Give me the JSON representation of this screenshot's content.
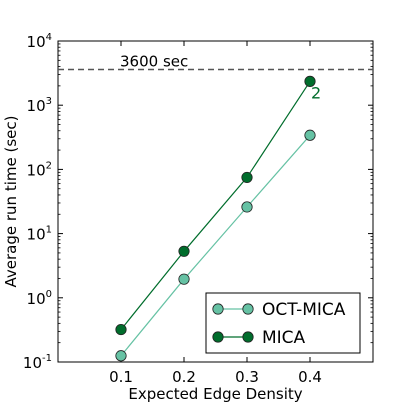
{
  "chart_data": {
    "type": "line",
    "xlabel": "Expected Edge Density",
    "ylabel": "Average run time (sec)",
    "yscale": "log",
    "xlim": [
      0.0,
      0.5
    ],
    "ylim": [
      0.1,
      10000
    ],
    "x_ticks": [
      {
        "value": 0.1,
        "label": "0.1"
      },
      {
        "value": 0.2,
        "label": "0.2"
      },
      {
        "value": 0.3,
        "label": "0.3"
      },
      {
        "value": 0.4,
        "label": "0.4"
      }
    ],
    "y_ticks": [
      {
        "value": 0.1,
        "base": "10",
        "exp": "-1"
      },
      {
        "value": 1,
        "base": "10",
        "exp": "0"
      },
      {
        "value": 10,
        "base": "10",
        "exp": "1"
      },
      {
        "value": 100,
        "base": "10",
        "exp": "2"
      },
      {
        "value": 1000,
        "base": "10",
        "exp": "3"
      },
      {
        "value": 10000,
        "base": "10",
        "exp": "4"
      }
    ],
    "x": [
      0.1,
      0.2,
      0.3,
      0.4
    ],
    "series": [
      {
        "name": "OCT-MICA",
        "values": [
          0.125,
          1.95,
          26,
          340
        ],
        "color": "#66c2a4"
      },
      {
        "name": "MICA",
        "values": [
          0.32,
          5.3,
          75,
          2350
        ],
        "color": "#006d2c"
      }
    ],
    "reference_line": {
      "value": 3600,
      "label": "3600 sec",
      "style": "dashed",
      "color": "#555555"
    },
    "annotation": {
      "text": "2",
      "x": 0.4,
      "y": 2350,
      "color": "#006d2c"
    },
    "legend": {
      "position": "bottom-right"
    },
    "grid": false
  }
}
